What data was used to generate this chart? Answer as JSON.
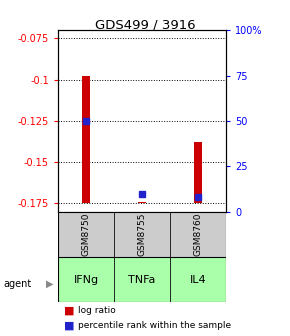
{
  "title": "GDS499 / 3916",
  "categories": [
    "GSM8750",
    "GSM8755",
    "GSM8760"
  ],
  "agents": [
    "IFNg",
    "TNFa",
    "IL4"
  ],
  "log_ratio_tops": [
    -0.098,
    -0.174,
    -0.138
  ],
  "percentile_ranks": [
    50,
    10,
    8
  ],
  "bar_baseline": -0.175,
  "ylim_left": [
    -0.18,
    -0.07
  ],
  "yticks_left": [
    -0.175,
    -0.15,
    -0.125,
    -0.1,
    -0.075
  ],
  "ylim_right": [
    0,
    100
  ],
  "yticks_right": [
    0,
    25,
    50,
    75,
    100
  ],
  "ytick_labels_right": [
    "0",
    "25",
    "50",
    "75",
    "100%"
  ],
  "bar_color": "#cc0000",
  "dot_color": "#2222cc",
  "sample_box_color": "#cccccc",
  "agent_color": "#aaffaa",
  "legend_items": [
    "log ratio",
    "percentile rank within the sample"
  ],
  "legend_colors": [
    "#cc0000",
    "#2222cc"
  ],
  "bar_width": 0.15
}
